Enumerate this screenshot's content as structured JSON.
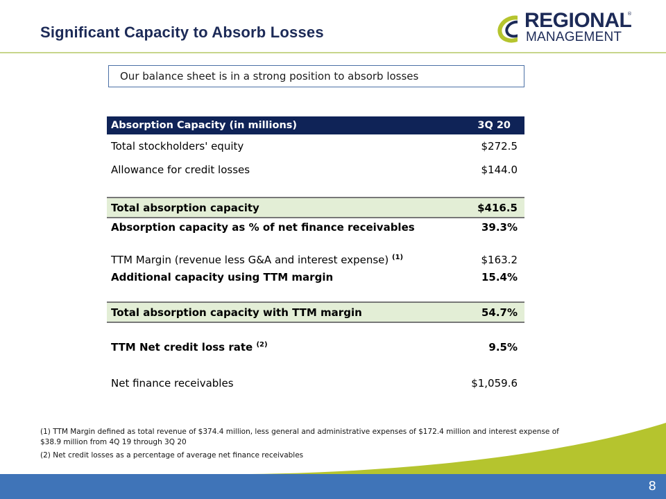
{
  "header": {
    "title": "Significant Capacity to Absorb Losses",
    "logo_line1": "REGIONAL",
    "logo_line2": "MANAGEMENT",
    "logo_reg": "®"
  },
  "callout": "Our balance sheet is in a strong position to absorb losses",
  "table": {
    "header_label": "Absorption Capacity (in millions)",
    "header_period": "3Q 20",
    "rows": [
      {
        "label": "Total stockholders' equity",
        "value": "$272.5"
      },
      {
        "label": "Allowance for credit losses",
        "value": "$144.0"
      },
      {
        "label": "Total absorption capacity",
        "value": "$416.5"
      },
      {
        "label": "Absorption capacity as % of net finance receivables",
        "value": "39.3%"
      },
      {
        "label": "TTM Margin (revenue less G&A and interest expense)",
        "sup": "(1)",
        "value": "$163.2"
      },
      {
        "label": "Additional capacity using TTM margin",
        "value": "15.4%"
      },
      {
        "label": "Total absorption capacity with TTM margin",
        "value": "54.7%"
      },
      {
        "label": "TTM Net credit loss rate",
        "sup": "(2)",
        "value": "9.5%"
      },
      {
        "label": "Net finance receivables",
        "value": "$1,059.6"
      }
    ]
  },
  "footnotes": {
    "note1": "(1) TTM Margin defined as total revenue of $374.4 million, less general and administrative expenses of $172.4 million and interest expense of $38.9 million from 4Q 19 through 3Q 20",
    "note2": "(2) Net credit losses as a percentage of average net finance receivables"
  },
  "page_number": "8",
  "colors": {
    "navy": "#0f2357",
    "title": "#1c2a57",
    "highlight": "#e3eed6",
    "green": "#b5c42e",
    "blue": "#3f74b8"
  }
}
